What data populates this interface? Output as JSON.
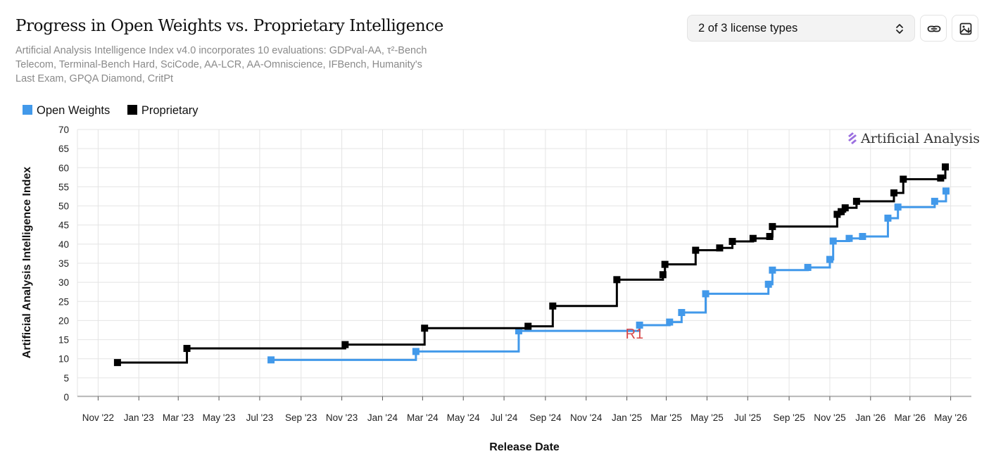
{
  "header": {
    "title": "Progress in Open Weights vs. Proprietary Intelligence",
    "subtitle": "Artificial Analysis Intelligence Index v4.0 incorporates 10 evaluations: GDPval-AA, τ²-Bench Telecom, Terminal-Bench Hard, SciCode, AA-LCR, AA-Omniscience, IFBench, Humanity's Last Exam, GPQA Diamond, CritPt"
  },
  "controls": {
    "license_select_value": "2 of 3 license types",
    "chevron_icon": "chevron-up-down-icon",
    "link_icon": "link-icon",
    "image_icon": "image-download-icon"
  },
  "watermark": "Artificial Analysis",
  "colors": {
    "open": "#4299ea",
    "proprietary": "#000000",
    "annotation": "#d94848",
    "watermark_icon": "#9b6fe0"
  },
  "chart_data": {
    "type": "line",
    "step": true,
    "xlabel": "Release Date",
    "ylabel": "Artificial Analysis Intelligence Index",
    "ylim": [
      0,
      70
    ],
    "yticks": [
      0,
      5,
      10,
      15,
      20,
      25,
      30,
      35,
      40,
      45,
      50,
      55,
      60,
      65,
      70
    ],
    "xlim": [
      "2022-10-01",
      "2026-06-01"
    ],
    "xticks": [
      {
        "date": "2022-11-01",
        "label": "Nov '22"
      },
      {
        "date": "2023-01-01",
        "label": "Jan '23"
      },
      {
        "date": "2023-03-01",
        "label": "Mar '23"
      },
      {
        "date": "2023-05-01",
        "label": "May '23"
      },
      {
        "date": "2023-07-01",
        "label": "Jul '23"
      },
      {
        "date": "2023-09-01",
        "label": "Sep '23"
      },
      {
        "date": "2023-11-01",
        "label": "Nov '23"
      },
      {
        "date": "2024-01-01",
        "label": "Jan '24"
      },
      {
        "date": "2024-03-01",
        "label": "Mar '24"
      },
      {
        "date": "2024-05-01",
        "label": "May '24"
      },
      {
        "date": "2024-07-01",
        "label": "Jul '24"
      },
      {
        "date": "2024-09-01",
        "label": "Sep '24"
      },
      {
        "date": "2024-11-01",
        "label": "Nov '24"
      },
      {
        "date": "2025-01-01",
        "label": "Jan '25"
      },
      {
        "date": "2025-03-01",
        "label": "Mar '25"
      },
      {
        "date": "2025-05-01",
        "label": "May '25"
      },
      {
        "date": "2025-07-01",
        "label": "Jul '25"
      },
      {
        "date": "2025-09-01",
        "label": "Sep '25"
      },
      {
        "date": "2025-11-01",
        "label": "Nov '25"
      },
      {
        "date": "2026-01-01",
        "label": "Jan '26"
      },
      {
        "date": "2026-03-01",
        "label": "Mar '26"
      },
      {
        "date": "2026-05-01",
        "label": "May '26"
      }
    ],
    "legend_position": "top-left",
    "grid": true,
    "series": [
      {
        "name": "Proprietary",
        "color": "#000000",
        "points": [
          {
            "x": "2022-11-30",
            "y": 9
          },
          {
            "x": "2023-03-14",
            "y": 12.7
          },
          {
            "x": "2023-11-06",
            "y": 13.7
          },
          {
            "x": "2024-03-04",
            "y": 18
          },
          {
            "x": "2024-08-06",
            "y": 18.5
          },
          {
            "x": "2024-09-12",
            "y": 23.8
          },
          {
            "x": "2024-12-17",
            "y": 30.7
          },
          {
            "x": "2025-02-24",
            "y": 32
          },
          {
            "x": "2025-02-27",
            "y": 34.7
          },
          {
            "x": "2025-04-14",
            "y": 38.4
          },
          {
            "x": "2025-05-20",
            "y": 39
          },
          {
            "x": "2025-06-08",
            "y": 40.7
          },
          {
            "x": "2025-07-09",
            "y": 41.5
          },
          {
            "x": "2025-08-03",
            "y": 42
          },
          {
            "x": "2025-08-07",
            "y": 44.6
          },
          {
            "x": "2025-11-12",
            "y": 47.8
          },
          {
            "x": "2025-11-18",
            "y": 48.5
          },
          {
            "x": "2025-11-24",
            "y": 49.5
          },
          {
            "x": "2025-12-11",
            "y": 51.2
          },
          {
            "x": "2026-02-05",
            "y": 53.4
          },
          {
            "x": "2026-02-19",
            "y": 57
          },
          {
            "x": "2026-04-16",
            "y": 57.3
          },
          {
            "x": "2026-04-23",
            "y": 60.2
          }
        ]
      },
      {
        "name": "Open Weights",
        "color": "#4299ea",
        "points": [
          {
            "x": "2023-07-18",
            "y": 9.7
          },
          {
            "x": "2024-02-20",
            "y": 11.9
          },
          {
            "x": "2024-07-23",
            "y": 17.3
          },
          {
            "x": "2025-01-20",
            "y": 18.8
          },
          {
            "x": "2025-03-06",
            "y": 19.6
          },
          {
            "x": "2025-03-24",
            "y": 22.1
          },
          {
            "x": "2025-04-29",
            "y": 27
          },
          {
            "x": "2025-08-01",
            "y": 29.5
          },
          {
            "x": "2025-08-07",
            "y": 33.2
          },
          {
            "x": "2025-09-29",
            "y": 33.9
          },
          {
            "x": "2025-11-01",
            "y": 36
          },
          {
            "x": "2025-11-06",
            "y": 40.8
          },
          {
            "x": "2025-11-30",
            "y": 41.5
          },
          {
            "x": "2025-12-20",
            "y": 42
          },
          {
            "x": "2026-01-27",
            "y": 46.8
          },
          {
            "x": "2026-02-11",
            "y": 49.7
          },
          {
            "x": "2026-04-07",
            "y": 51.2
          },
          {
            "x": "2026-04-24",
            "y": 53.9
          }
        ]
      }
    ],
    "annotations": [
      {
        "text": "R1",
        "x": "2025-01-20",
        "y": 17.3
      }
    ]
  }
}
